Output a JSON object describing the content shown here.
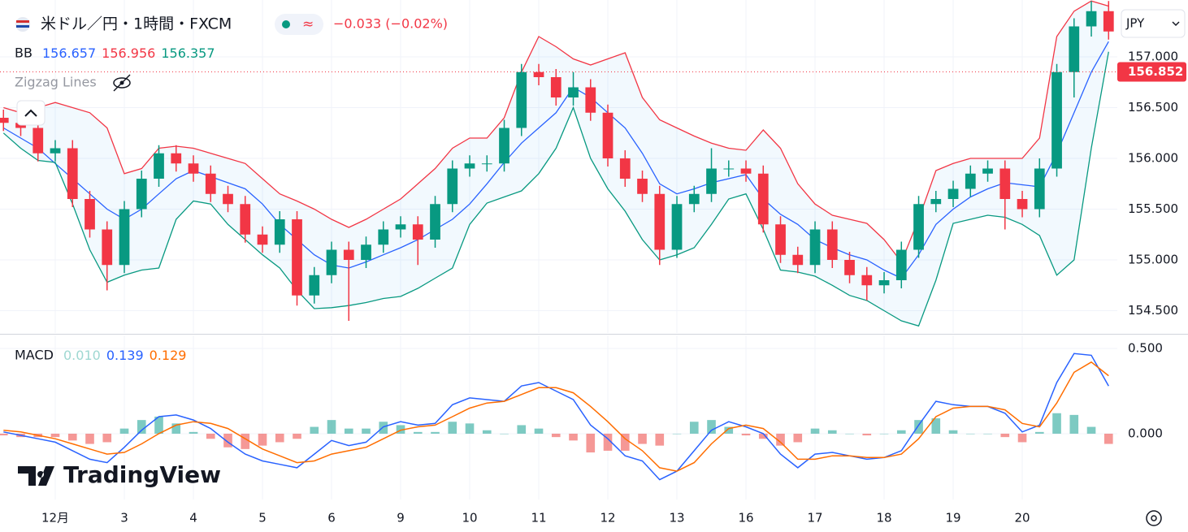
{
  "header": {
    "title": "米ドル／円・1時間・FXCM",
    "change": "−0.033 (−0.02%)",
    "zigzag": "Zigzag Lines",
    "currency": "JPY",
    "brand": "TradingView"
  },
  "chart_data": [
    {
      "type": "candlestick",
      "legend_label": "BB",
      "legend_values": [
        "156.657",
        "156.956",
        "156.357"
      ],
      "x": [
        -0.75,
        -0.5,
        -0.25,
        0,
        0.25,
        0.5,
        0.75,
        1,
        1.25,
        1.5,
        1.75,
        2,
        2.25,
        2.5,
        2.75,
        3,
        3.25,
        3.5,
        3.75,
        4,
        4.25,
        4.5,
        4.75,
        5,
        5.25,
        5.5,
        5.75,
        6,
        6.25,
        6.5,
        6.75,
        7,
        7.25,
        7.5,
        7.75,
        8,
        8.25,
        8.5,
        8.75,
        9,
        9.25,
        9.5,
        9.75,
        10,
        10.25,
        10.5,
        10.75,
        11,
        11.25,
        11.5,
        11.75,
        12,
        12.25,
        12.5,
        12.75,
        13,
        13.25,
        13.5,
        13.75,
        14,
        14.25,
        14.5,
        14.75,
        15,
        15.25
      ],
      "open": [
        156.4,
        156.35,
        156.3,
        156.05,
        156.1,
        155.6,
        155.3,
        154.95,
        155.5,
        155.8,
        156.05,
        155.95,
        155.85,
        155.65,
        155.55,
        155.25,
        155.15,
        155.4,
        154.65,
        154.85,
        155.1,
        155.0,
        155.15,
        155.3,
        155.35,
        155.2,
        155.55,
        155.9,
        155.95,
        155.95,
        156.3,
        156.85,
        156.8,
        156.6,
        156.7,
        156.45,
        156.0,
        155.8,
        155.65,
        155.1,
        155.55,
        155.65,
        155.9,
        155.9,
        155.85,
        155.35,
        155.05,
        154.95,
        155.3,
        155.0,
        154.85,
        154.75,
        154.8,
        155.1,
        155.55,
        155.6,
        155.7,
        155.85,
        155.9,
        155.6,
        155.5,
        155.9,
        156.85,
        157.3,
        157.45
      ],
      "high": [
        156.48,
        156.43,
        156.38,
        156.18,
        156.18,
        155.68,
        155.38,
        155.58,
        155.88,
        156.13,
        156.13,
        156.03,
        155.93,
        155.73,
        155.63,
        155.33,
        155.48,
        155.48,
        154.93,
        155.18,
        155.18,
        155.23,
        155.38,
        155.43,
        155.43,
        155.63,
        155.98,
        156.03,
        156.03,
        156.38,
        156.93,
        156.93,
        156.88,
        156.85,
        156.78,
        156.53,
        156.08,
        155.88,
        155.73,
        155.63,
        155.73,
        156.1,
        155.98,
        155.98,
        155.93,
        155.43,
        155.13,
        155.38,
        155.38,
        155.08,
        154.93,
        154.88,
        155.18,
        155.63,
        155.68,
        155.78,
        155.93,
        155.98,
        155.98,
        155.68,
        156.0,
        156.93,
        157.38,
        157.55,
        157.55
      ],
      "low": [
        156.27,
        156.22,
        155.97,
        155.97,
        155.52,
        155.22,
        154.7,
        154.87,
        155.42,
        155.72,
        155.87,
        155.77,
        155.57,
        155.47,
        155.17,
        155.07,
        155.07,
        154.55,
        154.57,
        154.77,
        154.4,
        154.92,
        155.07,
        155.22,
        154.95,
        155.12,
        155.47,
        155.82,
        155.87,
        155.87,
        156.22,
        156.72,
        156.52,
        156.52,
        156.37,
        155.92,
        155.72,
        155.57,
        154.95,
        155.02,
        155.47,
        155.57,
        155.82,
        155.77,
        155.27,
        154.97,
        154.87,
        154.87,
        154.92,
        154.77,
        154.6,
        154.67,
        154.72,
        155.02,
        155.47,
        155.52,
        155.62,
        155.77,
        155.3,
        155.42,
        155.42,
        155.82,
        156.6,
        157.2,
        157.17
      ],
      "close": [
        156.35,
        156.3,
        156.05,
        156.1,
        155.6,
        155.3,
        154.95,
        155.5,
        155.8,
        156.05,
        155.95,
        155.85,
        155.65,
        155.55,
        155.25,
        155.15,
        155.4,
        154.65,
        154.85,
        155.1,
        155.0,
        155.15,
        155.3,
        155.35,
        155.2,
        155.55,
        155.9,
        155.95,
        155.95,
        156.3,
        156.85,
        156.8,
        156.6,
        156.7,
        156.45,
        156.0,
        155.8,
        155.65,
        155.1,
        155.55,
        155.65,
        155.9,
        155.9,
        155.85,
        155.35,
        155.05,
        154.95,
        155.3,
        155.0,
        154.85,
        154.75,
        154.8,
        155.1,
        155.55,
        155.6,
        155.7,
        155.85,
        155.9,
        155.6,
        155.5,
        155.9,
        156.85,
        157.3,
        157.45,
        157.25
      ],
      "up_color": "#089981",
      "down_color": "#f23645",
      "bb_upper": [
        156.5,
        156.45,
        156.5,
        156.55,
        156.5,
        156.45,
        156.3,
        155.85,
        155.9,
        156.1,
        156.12,
        156.1,
        156.05,
        156.0,
        155.95,
        155.8,
        155.65,
        155.58,
        155.5,
        155.4,
        155.32,
        155.4,
        155.5,
        155.6,
        155.75,
        155.9,
        156.1,
        156.2,
        156.2,
        156.4,
        156.85,
        157.2,
        157.1,
        156.98,
        156.92,
        156.98,
        157.04,
        156.6,
        156.38,
        156.3,
        156.22,
        156.15,
        156.1,
        156.08,
        156.28,
        156.1,
        155.75,
        155.55,
        155.44,
        155.4,
        155.36,
        155.2,
        154.98,
        155.4,
        155.88,
        155.95,
        156.0,
        156.0,
        156.0,
        156.0,
        156.2,
        157.2,
        157.45,
        157.55,
        157.5
      ],
      "bb_basis": [
        156.3,
        156.2,
        156.1,
        155.95,
        155.8,
        155.65,
        155.5,
        155.4,
        155.5,
        155.65,
        155.8,
        155.88,
        155.82,
        155.76,
        155.7,
        155.55,
        155.35,
        155.2,
        155.05,
        154.95,
        154.92,
        154.98,
        155.05,
        155.12,
        155.2,
        155.3,
        155.4,
        155.55,
        155.75,
        155.96,
        156.15,
        156.3,
        156.45,
        156.7,
        156.6,
        156.45,
        156.3,
        156.05,
        155.75,
        155.65,
        155.7,
        155.76,
        155.8,
        155.84,
        155.6,
        155.45,
        155.35,
        155.2,
        155.12,
        155.05,
        155.0,
        154.9,
        154.82,
        155.05,
        155.35,
        155.5,
        155.62,
        155.7,
        155.76,
        155.74,
        155.72,
        156.05,
        156.45,
        156.85,
        157.15
      ],
      "bb_lower": [
        156.25,
        156.1,
        155.98,
        155.96,
        155.55,
        155.1,
        154.78,
        154.85,
        154.9,
        154.92,
        155.4,
        155.58,
        155.55,
        155.35,
        155.2,
        155.05,
        154.92,
        154.7,
        154.52,
        154.53,
        154.55,
        154.58,
        154.62,
        154.64,
        154.72,
        154.82,
        154.92,
        155.35,
        155.56,
        155.62,
        155.68,
        155.85,
        156.1,
        156.5,
        156.0,
        155.7,
        155.48,
        155.2,
        155.0,
        155.05,
        155.12,
        155.35,
        155.6,
        155.65,
        155.3,
        154.9,
        154.88,
        154.84,
        154.75,
        154.65,
        154.6,
        154.5,
        154.4,
        154.35,
        154.8,
        155.36,
        155.4,
        155.44,
        155.42,
        155.35,
        155.24,
        154.85,
        155.0,
        156.1,
        157.05
      ],
      "bb_colors": [
        "#2962ff",
        "#f23645",
        "#089981"
      ],
      "ylim": [
        154.28,
        157.56
      ],
      "yticks": [
        {
          "value": 154.5,
          "label": "154.500"
        },
        {
          "value": 155,
          "label": "155.000"
        },
        {
          "value": 155.5,
          "label": "155.500"
        },
        {
          "value": 156,
          "label": "156.000"
        },
        {
          "value": 156.5,
          "label": "156.500"
        },
        {
          "value": 157,
          "label": "157.000"
        }
      ],
      "last_price": {
        "value": 156.852,
        "label": "156.852"
      },
      "grid": true
    },
    {
      "type": "macd",
      "legend_label": "MACD",
      "legend_values": [
        "0.010",
        "0.139",
        "0.129"
      ],
      "legend_colors": [
        "#9fd8d2",
        "#2962ff",
        "#ff6d00"
      ],
      "x": [
        -0.75,
        -0.5,
        -0.25,
        0,
        0.25,
        0.5,
        0.75,
        1,
        1.25,
        1.5,
        1.75,
        2,
        2.25,
        2.5,
        2.75,
        3,
        3.25,
        3.5,
        3.75,
        4,
        4.25,
        4.5,
        4.75,
        5,
        5.25,
        5.5,
        5.75,
        6,
        6.25,
        6.5,
        6.75,
        7,
        7.25,
        7.5,
        7.75,
        8,
        8.25,
        8.5,
        8.75,
        9,
        9.25,
        9.5,
        9.75,
        10,
        10.25,
        10.5,
        10.75,
        11,
        11.25,
        11.5,
        11.75,
        12,
        12.25,
        12.5,
        12.75,
        13,
        13.25,
        13.5,
        13.75,
        14,
        14.25,
        14.5,
        14.75,
        15,
        15.25
      ],
      "histogram": [
        -0.01,
        -0.02,
        -0.02,
        -0.02,
        -0.04,
        -0.06,
        -0.05,
        0.03,
        0.08,
        0.1,
        0.06,
        0.01,
        -0.03,
        -0.08,
        -0.09,
        -0.07,
        -0.05,
        -0.03,
        0.04,
        0.08,
        0.03,
        0.03,
        0.07,
        0.05,
        0.01,
        0.01,
        0.07,
        0.06,
        0.02,
        0,
        0.05,
        0.03,
        -0.02,
        -0.04,
        -0.11,
        -0.1,
        -0.1,
        -0.06,
        -0.07,
        0,
        0.07,
        0.08,
        0.04,
        -0.01,
        -0.03,
        -0.07,
        -0.05,
        0.03,
        0.02,
        0,
        -0.01,
        0,
        0.02,
        0.08,
        0.09,
        0.02,
        0,
        0,
        -0.02,
        -0.05,
        0.01,
        0.12,
        0.11,
        0.04,
        -0.06
      ],
      "hist_colors": [
        "#26a69a",
        "#ef5350"
      ],
      "macd": [
        0.01,
        -0.01,
        -0.03,
        -0.05,
        -0.1,
        -0.15,
        -0.17,
        -0.08,
        0.02,
        0.1,
        0.11,
        0.08,
        0.03,
        -0.05,
        -0.12,
        -0.16,
        -0.18,
        -0.2,
        -0.12,
        -0.04,
        -0.07,
        -0.05,
        0.04,
        0.07,
        0.05,
        0.06,
        0.17,
        0.21,
        0.2,
        0.19,
        0.28,
        0.3,
        0.25,
        0.2,
        0.05,
        -0.03,
        -0.13,
        -0.16,
        -0.27,
        -0.22,
        -0.1,
        0.02,
        0.07,
        0.04,
        0,
        -0.12,
        -0.2,
        -0.12,
        -0.11,
        -0.13,
        -0.15,
        -0.14,
        -0.1,
        0.05,
        0.19,
        0.17,
        0.16,
        0.16,
        0.12,
        0.01,
        0.05,
        0.3,
        0.47,
        0.46,
        0.28
      ],
      "signal": [
        0.02,
        0.01,
        -0.01,
        -0.03,
        -0.06,
        -0.09,
        -0.12,
        -0.11,
        -0.06,
        0,
        0.05,
        0.07,
        0.06,
        0.03,
        -0.03,
        -0.09,
        -0.13,
        -0.17,
        -0.16,
        -0.12,
        -0.1,
        -0.08,
        -0.03,
        0.02,
        0.04,
        0.05,
        0.1,
        0.15,
        0.18,
        0.19,
        0.23,
        0.27,
        0.27,
        0.24,
        0.16,
        0.07,
        -0.03,
        -0.1,
        -0.2,
        -0.22,
        -0.17,
        -0.06,
        0.03,
        0.05,
        0.03,
        -0.05,
        -0.15,
        -0.15,
        -0.13,
        -0.13,
        -0.14,
        -0.14,
        -0.12,
        -0.03,
        0.1,
        0.15,
        0.16,
        0.16,
        0.14,
        0.06,
        0.04,
        0.18,
        0.36,
        0.42,
        0.34
      ],
      "ylim": [
        -0.386,
        0.576
      ],
      "yticks": [
        {
          "value": 0,
          "label": "0.000"
        },
        {
          "value": 0.5,
          "label": "0.500"
        }
      ],
      "xlim": [
        -0.8,
        15.376
      ],
      "xticks": [
        {
          "value": 0,
          "label": "12月"
        },
        {
          "value": 1,
          "label": "3"
        },
        {
          "value": 2,
          "label": "4"
        },
        {
          "value": 3,
          "label": "5"
        },
        {
          "value": 4,
          "label": "6"
        },
        {
          "value": 5,
          "label": "9"
        },
        {
          "value": 6,
          "label": "10"
        },
        {
          "value": 7,
          "label": "11"
        },
        {
          "value": 8,
          "label": "12"
        },
        {
          "value": 9,
          "label": "13"
        },
        {
          "value": 10,
          "label": "16"
        },
        {
          "value": 11,
          "label": "17"
        },
        {
          "value": 12,
          "label": "18"
        },
        {
          "value": 13,
          "label": "19"
        },
        {
          "value": 14,
          "label": "20"
        }
      ],
      "grid": true
    }
  ]
}
